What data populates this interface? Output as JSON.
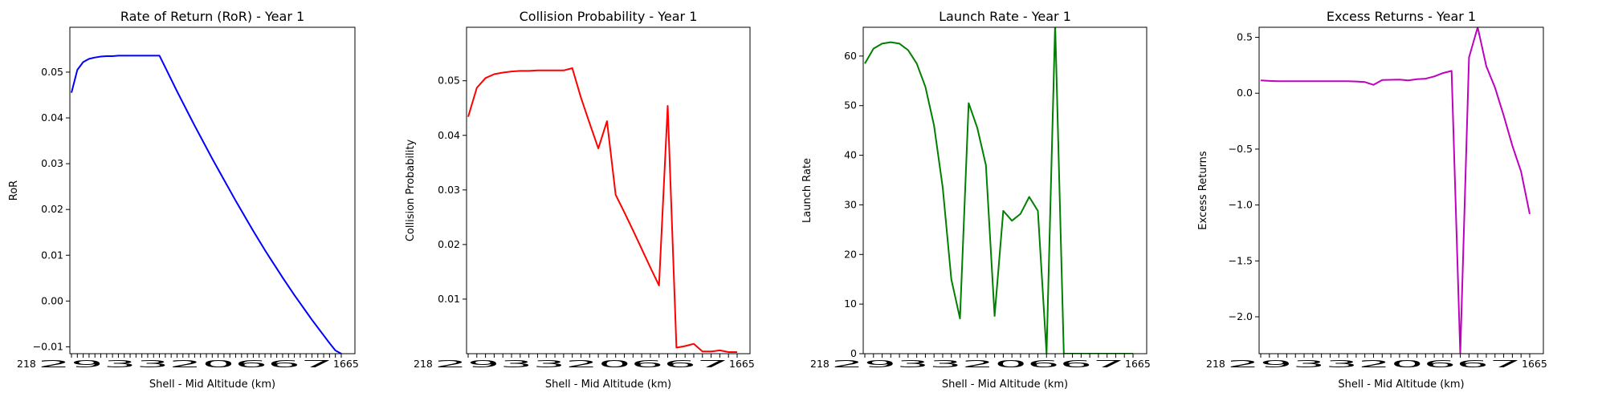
{
  "chart_data": [
    {
      "type": "line",
      "title": "Rate of Return (RoR) - Year 1",
      "xlabel": "Shell - Mid Altitude (km)",
      "ylabel": "RoR",
      "color": "#0000ff",
      "ylim": [
        -0.0115,
        0.0598
      ],
      "yticks": [
        -0.01,
        0.0,
        0.01,
        0.02,
        0.03,
        0.04,
        0.05
      ],
      "ytick_labels": [
        "−0.01",
        "0.00",
        "0.01",
        "0.02",
        "0.03",
        "0.04",
        "0.05"
      ],
      "xtick_first": "218",
      "xtick_cluster": "293320667",
      "xtick_last": "1665",
      "values": [
        0.0455,
        0.0505,
        0.0522,
        0.0529,
        0.0532,
        0.0534,
        0.0535,
        0.0535,
        0.0536,
        0.0536,
        0.0536,
        0.0536,
        0.0536,
        0.0536,
        0.0536,
        0.0536,
        0.051,
        0.0484,
        0.0458,
        0.0433,
        0.0408,
        0.0383,
        0.0359,
        0.0335,
        0.0311,
        0.0288,
        0.0265,
        0.0242,
        0.0219,
        0.0197,
        0.0175,
        0.0153,
        0.0132,
        0.0111,
        0.0091,
        0.0071,
        0.0051,
        0.0032,
        0.0013,
        -0.0005,
        -0.0023,
        -0.0041,
        -0.0058,
        -0.0075,
        -0.0092,
        -0.0108,
        -0.0115
      ]
    },
    {
      "type": "line",
      "title": "Collision Probability - Year 1",
      "xlabel": "Shell - Mid Altitude (km)",
      "ylabel": "Collision Probability",
      "color": "#ff0000",
      "ylim": [
        0.0,
        0.0598
      ],
      "yticks": [
        0.01,
        0.02,
        0.03,
        0.04,
        0.05
      ],
      "ytick_labels": [
        "0.01",
        "0.02",
        "0.03",
        "0.04",
        "0.05"
      ],
      "xtick_first": "218",
      "xtick_cluster": "293320667",
      "xtick_last": "1665",
      "values": [
        0.0434,
        0.0487,
        0.0505,
        0.0512,
        0.0515,
        0.0517,
        0.0518,
        0.0518,
        0.0519,
        0.0519,
        0.0519,
        0.0519,
        0.0523,
        0.0469,
        0.0422,
        0.0376,
        0.0426,
        0.0291,
        0.0259,
        0.0226,
        0.0192,
        0.0158,
        0.0125,
        0.0454,
        0.0011,
        0.0014,
        0.0018,
        0.0004,
        0.0004,
        0.0006,
        0.0003,
        0.0003
      ]
    },
    {
      "type": "line",
      "title": "Launch Rate - Year 1",
      "xlabel": "Shell - Mid Altitude (km)",
      "ylabel": "Launch Rate",
      "color": "#008000",
      "ylim": [
        0,
        65.8
      ],
      "yticks": [
        0,
        10,
        20,
        30,
        40,
        50,
        60
      ],
      "ytick_labels": [
        "0",
        "10",
        "20",
        "30",
        "40",
        "50",
        "60"
      ],
      "xtick_first": "218",
      "xtick_cluster": "293320667",
      "xtick_last": "1665",
      "values": [
        58.5,
        61.5,
        62.5,
        62.8,
        62.5,
        61.2,
        58.5,
        53.8,
        46.0,
        33.5,
        15.0,
        7.1,
        50.5,
        45.5,
        38.0,
        7.6,
        28.8,
        26.8,
        28.2,
        31.6,
        28.8,
        0,
        66.5,
        0,
        0,
        0,
        0,
        0,
        0,
        0,
        0,
        0
      ]
    },
    {
      "type": "line",
      "title": "Excess Returns - Year 1",
      "xlabel": "Shell - Mid Altitude (km)",
      "ylabel": "Excess Returns",
      "color": "#bf00bf",
      "ylim": [
        -2.33,
        0.59
      ],
      "yticks": [
        -2.0,
        -1.5,
        -1.0,
        -0.5,
        0.0,
        0.5
      ],
      "ytick_labels": [
        "−2.0",
        "−1.5",
        "−1.0",
        "−0.5",
        "0.0",
        "0.5"
      ],
      "xtick_first": "218",
      "xtick_cluster": "293320667",
      "xtick_last": "1665",
      "values": [
        0.115,
        0.11,
        0.108,
        0.108,
        0.108,
        0.108,
        0.108,
        0.108,
        0.108,
        0.108,
        0.107,
        0.105,
        0.1,
        0.075,
        0.118,
        0.12,
        0.122,
        0.115,
        0.125,
        0.13,
        0.15,
        0.18,
        0.2,
        -2.33,
        0.32,
        0.59,
        0.24,
        0.05,
        -0.2,
        -0.47,
        -0.7,
        -1.08
      ]
    }
  ]
}
